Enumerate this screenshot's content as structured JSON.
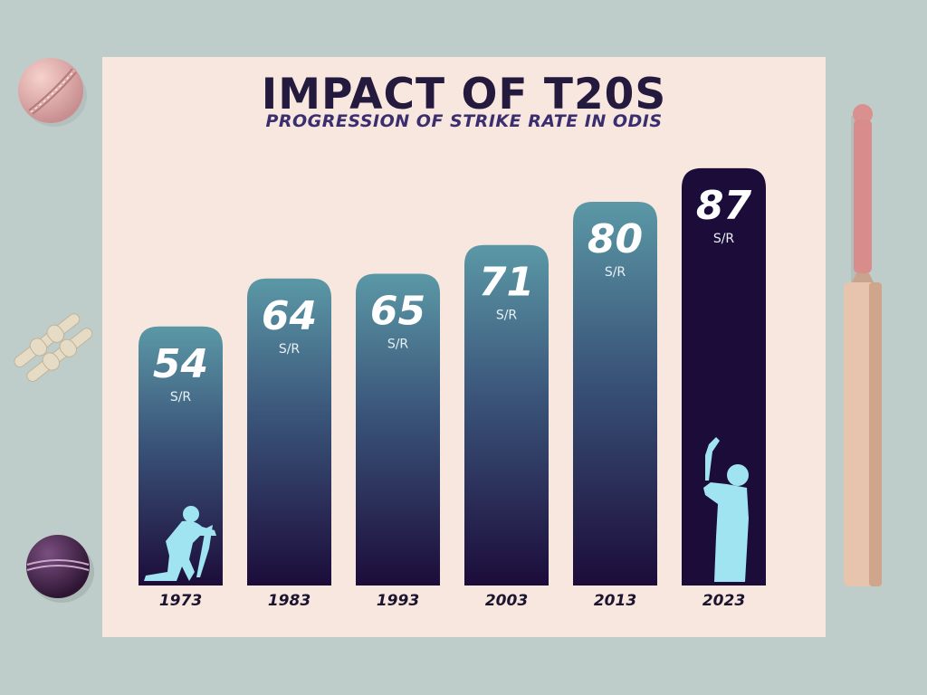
{
  "chart_data": {
    "type": "bar",
    "title": "IMPACT OF T20S",
    "subtitle": "PROGRESSION OF STRIKE RATE IN ODIS",
    "categories": [
      "1973",
      "1983",
      "1993",
      "2003",
      "2013",
      "2023"
    ],
    "values": [
      54,
      64,
      65,
      71,
      80,
      87
    ],
    "value_unit": "S/R",
    "xlabel": "",
    "ylabel": "",
    "ylim": [
      0,
      100
    ],
    "grid": false,
    "legend": "none"
  },
  "colors": {
    "background": "#bfcdca",
    "poster": "#f7e7de",
    "title": "#231a3e",
    "bar_top": "#5b98a6",
    "bar_bottom": "#1c0c3a",
    "highlight_bar": "#1c0c3a",
    "silhouette": "#9fe4f0"
  },
  "icons": {
    "top_left": "red-cricket-ball-icon",
    "middle_left": "bails-icon",
    "bottom_left": "purple-cricket-ball-icon",
    "right": "cricket-bat-icon",
    "first_bar": "batsman-defending-silhouette-icon",
    "last_bar": "batsman-celebrating-silhouette-icon"
  }
}
